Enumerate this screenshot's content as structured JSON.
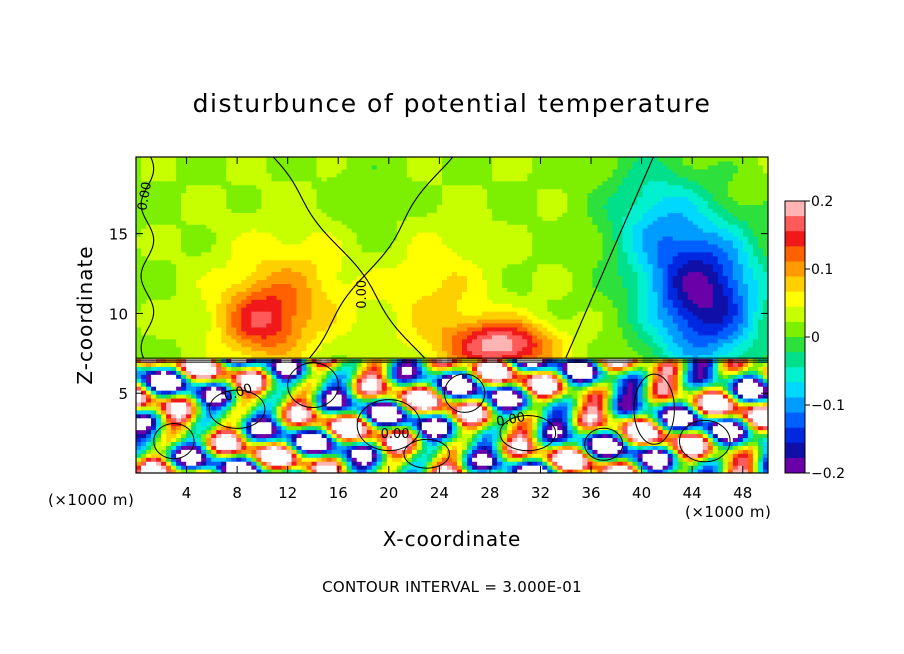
{
  "chart_data": {
    "type": "heatmap",
    "title": "disturbunce of potential temperature",
    "xlabel": "X-coordinate",
    "ylabel": "Z-coordinate",
    "x_unit_left": "(×1000 m)",
    "x_unit_right": "(×1000 m)",
    "footer": "CONTOUR INTERVAL = 3.000E-01",
    "xlim": [
      0,
      50
    ],
    "ylim": [
      0,
      19.8
    ],
    "x_ticks": [
      4,
      8,
      12,
      16,
      20,
      24,
      28,
      32,
      36,
      40,
      44,
      48
    ],
    "y_ticks": [
      5,
      10,
      15
    ],
    "contour_labels": [
      {
        "text": "0.00",
        "x": 1.0,
        "y": 17.3,
        "angle": -80
      },
      {
        "text": "0.00",
        "x": 18.2,
        "y": 11.2,
        "angle": -90
      },
      {
        "text": "0.00",
        "x": 8.2,
        "y": 4.8,
        "angle": -20
      },
      {
        "text": "0.00",
        "x": 29.7,
        "y": 3.1,
        "angle": -10
      },
      {
        "text": "0.00",
        "x": 20.5,
        "y": 2.2,
        "angle": 0
      }
    ],
    "colorbar": {
      "range": [
        -0.2,
        0.2
      ],
      "ticks": [
        0.2,
        0.1,
        0,
        -0.1,
        -0.2
      ],
      "tick_labels": [
        "0.2",
        "0.1",
        "0",
        "−0.1",
        "−0.2"
      ],
      "colors": [
        "#ffb3b3",
        "#ff5a5a",
        "#f01818",
        "#ff6000",
        "#ff9a00",
        "#ffd000",
        "#ffff00",
        "#c8ff00",
        "#7cf000",
        "#2ee03c",
        "#00e08a",
        "#00f0d0",
        "#00d8ff",
        "#009cff",
        "#0060ff",
        "#0028e0",
        "#1010a8",
        "#6a00a8"
      ]
    },
    "field": {
      "nx": 50,
      "nz": 20,
      "boundary_z": 7.2,
      "warm_blobs": [
        [
          10,
          9.5,
          3.5,
          2.5,
          0.11
        ],
        [
          29,
          8.0,
          4,
          1.6,
          0.17
        ],
        [
          13,
          12,
          6,
          4,
          0.05
        ],
        [
          24,
          11,
          4,
          4,
          0.05
        ]
      ],
      "cold_blobs": [
        [
          45,
          11,
          4.5,
          4.5,
          -0.2
        ],
        [
          41,
          16,
          4,
          4,
          -0.08
        ],
        [
          18,
          16,
          3,
          4,
          -0.02
        ]
      ],
      "background": 0.02
    }
  }
}
